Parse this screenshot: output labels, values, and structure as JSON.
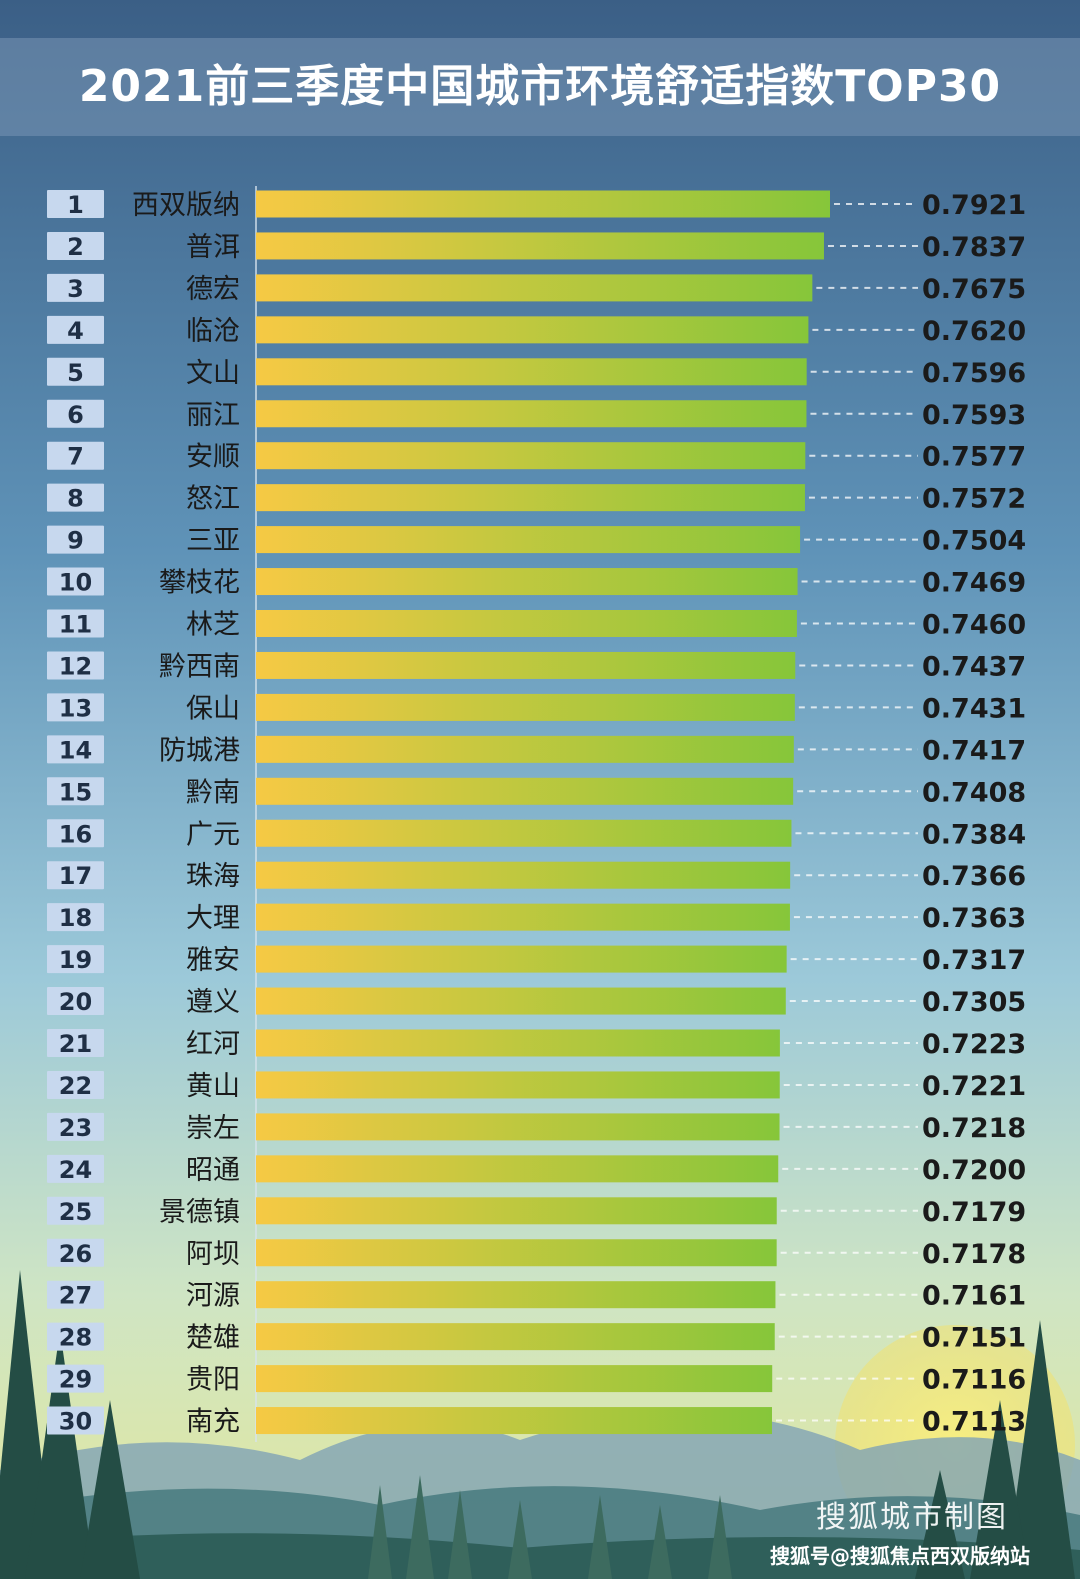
{
  "chart_data": {
    "type": "bar",
    "orientation": "horizontal",
    "title": "2021前三季度中国城市环境舒适指数TOP30",
    "ranks": [
      "1",
      "2",
      "3",
      "4",
      "5",
      "6",
      "7",
      "8",
      "9",
      "10",
      "11",
      "12",
      "13",
      "14",
      "15",
      "16",
      "17",
      "18",
      "19",
      "20",
      "21",
      "22",
      "23",
      "24",
      "25",
      "26",
      "27",
      "28",
      "29",
      "30"
    ],
    "categories": [
      "西双版纳",
      "普洱",
      "德宏",
      "临沧",
      "文山",
      "丽江",
      "安顺",
      "怒江",
      "三亚",
      "攀枝花",
      "林芝",
      "黔西南",
      "保山",
      "防城港",
      "黔南",
      "广元",
      "珠海",
      "大理",
      "雅安",
      "遵义",
      "红河",
      "黄山",
      "崇左",
      "昭通",
      "景德镇",
      "阿坝",
      "河源",
      "楚雄",
      "贵阳",
      "南充"
    ],
    "values": [
      0.7921,
      0.7837,
      0.7675,
      0.762,
      0.7596,
      0.7593,
      0.7577,
      0.7572,
      0.7504,
      0.7469,
      0.746,
      0.7437,
      0.7431,
      0.7417,
      0.7408,
      0.7384,
      0.7366,
      0.7363,
      0.7317,
      0.7305,
      0.7223,
      0.7221,
      0.7218,
      0.72,
      0.7179,
      0.7178,
      0.7161,
      0.7151,
      0.7116,
      0.7113
    ],
    "value_labels": [
      "0.7921",
      "0.7837",
      "0.7675",
      "0.7620",
      "0.7596",
      "0.7593",
      "0.7577",
      "0.7572",
      "0.7504",
      "0.7469",
      "0.7460",
      "0.7437",
      "0.7431",
      "0.7417",
      "0.7408",
      "0.7384",
      "0.7366",
      "0.7363",
      "0.7317",
      "0.7305",
      "0.7223",
      "0.7221",
      "0.7218",
      "0.7200",
      "0.7179",
      "0.7178",
      "0.7161",
      "0.7151",
      "0.7116",
      "0.7113"
    ],
    "xlabel": "",
    "ylabel": "",
    "grid": false,
    "bar_gradient": [
      "#f6c944",
      "#86c63a"
    ],
    "rank_box_color": "#c7d8ee",
    "label_color": "#1a1a1a"
  },
  "credits": {
    "source": "搜狐城市制图",
    "account": "搜狐号@搜狐焦点西双版纳站"
  }
}
